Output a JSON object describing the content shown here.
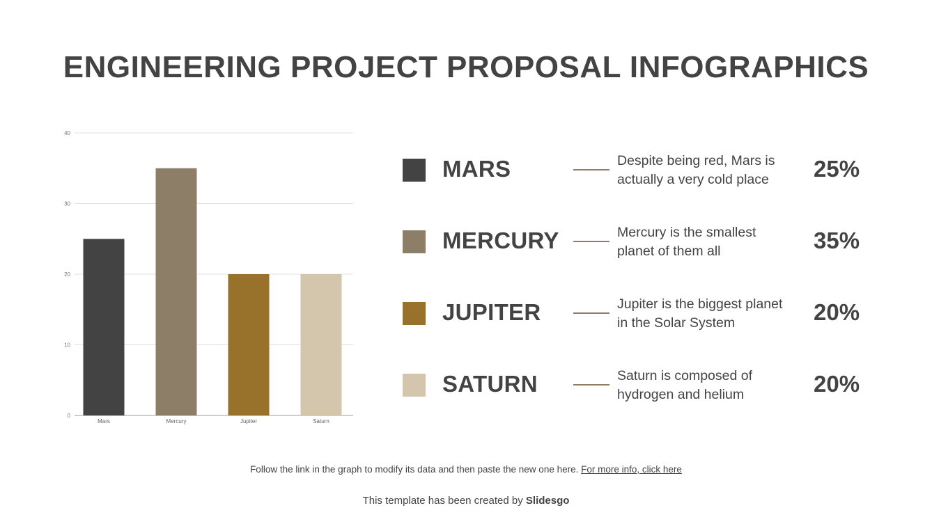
{
  "slide": {
    "title": "ENGINEERING PROJECT PROPOSAL INFOGRAPHICS"
  },
  "chart_data": {
    "type": "bar",
    "categories": [
      "Mars",
      "Mercury",
      "Jupiter",
      "Saturn"
    ],
    "values": [
      25,
      35,
      20,
      20
    ],
    "colors": [
      "#434343",
      "#8d7f67",
      "#98712a",
      "#d3c6ac"
    ],
    "y_ticks": [
      0,
      10,
      20,
      30,
      40
    ],
    "ylim": [
      0,
      40
    ],
    "grid": true,
    "legend": "none",
    "title": "",
    "xlabel": "",
    "ylabel": ""
  },
  "legend": {
    "items": [
      {
        "name": "MARS",
        "desc_line1": "Despite being red, Mars is",
        "desc_line2": "actually a very cold place",
        "percent": "25%",
        "color": "#434343"
      },
      {
        "name": "MERCURY",
        "desc_line1": "Mercury is the smallest",
        "desc_line2": "planet of them all",
        "percent": "35%",
        "color": "#8d7f67"
      },
      {
        "name": "JUPITER",
        "desc_line1": "Jupiter is the biggest planet",
        "desc_line2": "in the Solar System",
        "percent": "20%",
        "color": "#98712a"
      },
      {
        "name": "SATURN",
        "desc_line1": "Saturn is composed of",
        "desc_line2": "hydrogen and helium",
        "percent": "20%",
        "color": "#d3c6ac"
      }
    ]
  },
  "footer": {
    "note": "Follow the link in the graph to modify its data and then paste the new one here.",
    "link": "For more info, click here",
    "credit_prefix": "This template has been created by",
    "credit_brand": "Slidesgo"
  }
}
